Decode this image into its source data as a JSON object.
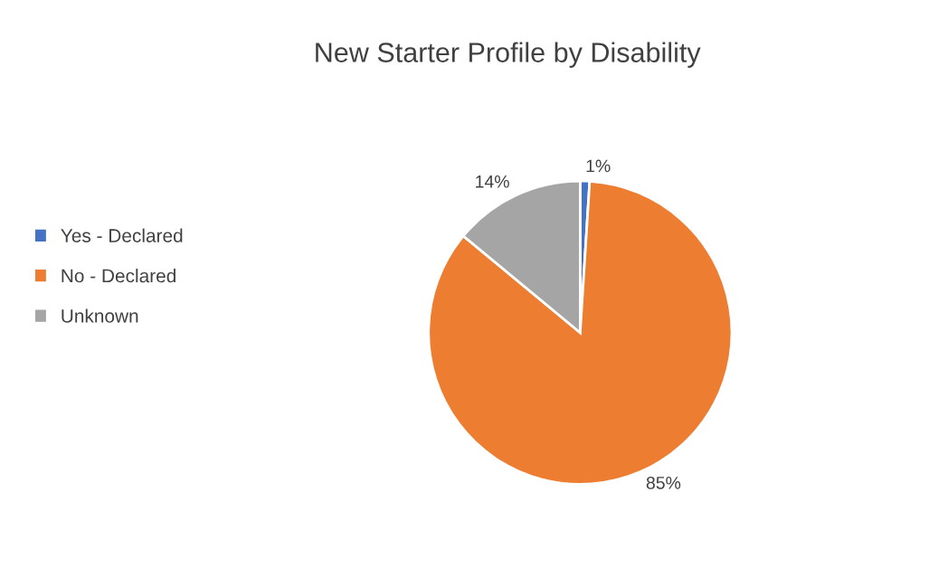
{
  "chart_data": {
    "type": "pie",
    "title": "New Starter Profile by Disability",
    "categories": [
      "Yes - Declared",
      "No - Declared",
      "Unknown"
    ],
    "values": [
      1,
      85,
      14
    ],
    "colors": [
      "#4472c4",
      "#ed7d31",
      "#a5a5a5"
    ],
    "value_labels": [
      "1%",
      "85%",
      "14%"
    ],
    "legend": "left"
  }
}
